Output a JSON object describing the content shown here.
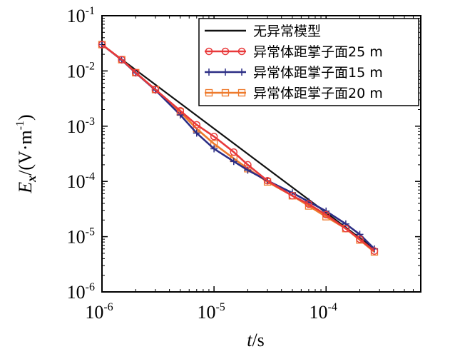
{
  "chart_data": {
    "type": "line",
    "x_scale": "log",
    "y_scale": "log",
    "xlim": [
      1e-06,
      0.0007
    ],
    "ylim": [
      1e-06,
      0.1
    ],
    "x_ticks": [
      {
        "base": "10",
        "exp": "-6",
        "value": 1e-06
      },
      {
        "base": "10",
        "exp": "-5",
        "value": 1e-05
      },
      {
        "base": "10",
        "exp": "-4",
        "value": 0.0001
      }
    ],
    "y_ticks": [
      {
        "base": "10",
        "exp": "-1",
        "value": 0.1
      },
      {
        "base": "10",
        "exp": "-2",
        "value": 0.01
      },
      {
        "base": "10",
        "exp": "-3",
        "value": 0.001
      },
      {
        "base": "10",
        "exp": "-4",
        "value": 0.0001
      },
      {
        "base": "10",
        "exp": "-5",
        "value": 1e-05
      },
      {
        "base": "10",
        "exp": "-6",
        "value": 1e-06
      }
    ],
    "xlabel": {
      "var": "t",
      "unit": "/s"
    },
    "ylabel": {
      "var": "E",
      "sub": "x",
      "unit": "/(V·m",
      "unit_exp": "-1",
      "unit_close": ")"
    },
    "legend_position": "top-right",
    "series": [
      {
        "name": "无异常模型",
        "color": "#111111",
        "marker": "none",
        "x": [
          1e-06,
          0.00027
        ],
        "y": [
          0.03,
          6e-06
        ]
      },
      {
        "name": "异常体距掌子面25 m",
        "color": "#e8393a",
        "marker": "circle",
        "x": [
          1e-06,
          1.5e-06,
          2e-06,
          3e-06,
          5e-06,
          7e-06,
          1e-05,
          1.5e-05,
          2e-05,
          3e-05,
          5e-05,
          7e-05,
          0.0001,
          0.00015,
          0.0002,
          0.00027
        ],
        "y": [
          0.03,
          0.016,
          0.0093,
          0.0046,
          0.0019,
          0.00106,
          0.00065,
          0.00034,
          0.0002,
          0.000103,
          5.5e-05,
          3.9e-05,
          2.5e-05,
          1.4e-05,
          9e-06,
          5.5e-06
        ]
      },
      {
        "name": "异常体距掌子面15 m",
        "color": "#2c2e85",
        "marker": "plus",
        "x": [
          1e-06,
          1.5e-06,
          2e-06,
          3e-06,
          5e-06,
          7e-06,
          1e-05,
          1.5e-05,
          2e-05,
          3e-05,
          5e-05,
          7e-05,
          0.0001,
          0.00015,
          0.0002,
          0.00027
        ],
        "y": [
          0.03,
          0.0158,
          0.0092,
          0.0045,
          0.0016,
          0.00075,
          0.00039,
          0.00023,
          0.00016,
          0.000103,
          6.2e-05,
          4.3e-05,
          2.9e-05,
          1.7e-05,
          1.1e-05,
          6e-06
        ]
      },
      {
        "name": "异常体距掌子面20 m",
        "color": "#ee7a2c",
        "marker": "square",
        "x": [
          1e-06,
          1.5e-06,
          2e-06,
          3e-06,
          5e-06,
          7e-06,
          1e-05,
          1.5e-05,
          2e-05,
          3e-05,
          5e-05,
          7e-05,
          0.0001,
          0.00015,
          0.0002,
          0.00027
        ],
        "y": [
          0.03,
          0.016,
          0.0093,
          0.0046,
          0.0018,
          0.0009,
          0.00048,
          0.00026,
          0.00017,
          9.8e-05,
          5.5e-05,
          3.6e-05,
          2.3e-05,
          1.4e-05,
          8.7e-06,
          5.3e-06
        ]
      }
    ]
  }
}
